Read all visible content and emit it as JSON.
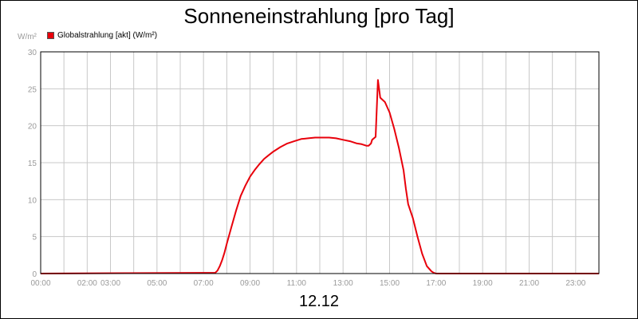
{
  "chart_data": {
    "type": "line",
    "title": "Sonneneinstrahlung [pro Tag]",
    "date_label": "12.12",
    "unit_label": "W/m²",
    "ylim": [
      0,
      30
    ],
    "xlim": [
      0,
      24
    ],
    "y_ticks": [
      0,
      5,
      10,
      15,
      20,
      25,
      30
    ],
    "x_ticks": [
      {
        "value": 0,
        "label": "00:00"
      },
      {
        "value": 2,
        "label": "02:00"
      },
      {
        "value": 3,
        "label": "03:00"
      },
      {
        "value": 5,
        "label": "05:00"
      },
      {
        "value": 7,
        "label": "07:00"
      },
      {
        "value": 9,
        "label": "09:00"
      },
      {
        "value": 11,
        "label": "11:00"
      },
      {
        "value": 13,
        "label": "13:00"
      },
      {
        "value": 15,
        "label": "15:00"
      },
      {
        "value": 17,
        "label": "17:00"
      },
      {
        "value": 19,
        "label": "19:00"
      },
      {
        "value": 21,
        "label": "21:00"
      },
      {
        "value": 23,
        "label": "23:00"
      }
    ],
    "x_grid": [
      0,
      1,
      2,
      3,
      4,
      5,
      6,
      7,
      8,
      9,
      10,
      11,
      12,
      13,
      14,
      15,
      16,
      17,
      18,
      19,
      20,
      21,
      22,
      23,
      24
    ],
    "grid": true,
    "legend_position": "top-left",
    "series": [
      {
        "name": "Globalstrahlung [akt] (W/m²)",
        "color": "#e8000b",
        "x": [
          0,
          7.5,
          7.6,
          7.7,
          7.8,
          7.9,
          8.0,
          8.2,
          8.4,
          8.6,
          8.8,
          9.0,
          9.2,
          9.4,
          9.6,
          9.8,
          10.0,
          10.3,
          10.6,
          10.9,
          11.2,
          11.5,
          11.8,
          12.1,
          12.4,
          12.7,
          13.0,
          13.3,
          13.6,
          13.8,
          14.0,
          14.1,
          14.2,
          14.25,
          14.4,
          14.5,
          14.6,
          14.8,
          15.0,
          15.2,
          15.4,
          15.6,
          15.7,
          15.8,
          16.0,
          16.2,
          16.4,
          16.6,
          16.8,
          16.9,
          17.0,
          24
        ],
        "y": [
          0,
          0.1,
          0.4,
          1.0,
          1.8,
          2.8,
          4.0,
          6.3,
          8.5,
          10.5,
          11.9,
          13.1,
          14.0,
          14.8,
          15.5,
          16.0,
          16.5,
          17.1,
          17.6,
          17.9,
          18.2,
          18.3,
          18.4,
          18.4,
          18.4,
          18.3,
          18.1,
          17.9,
          17.6,
          17.5,
          17.3,
          17.3,
          17.6,
          18.1,
          18.5,
          26.2,
          23.8,
          23.2,
          21.8,
          19.6,
          17.0,
          14.0,
          11.5,
          9.4,
          7.5,
          5.0,
          2.7,
          1.0,
          0.3,
          0.1,
          0,
          0
        ]
      }
    ]
  }
}
